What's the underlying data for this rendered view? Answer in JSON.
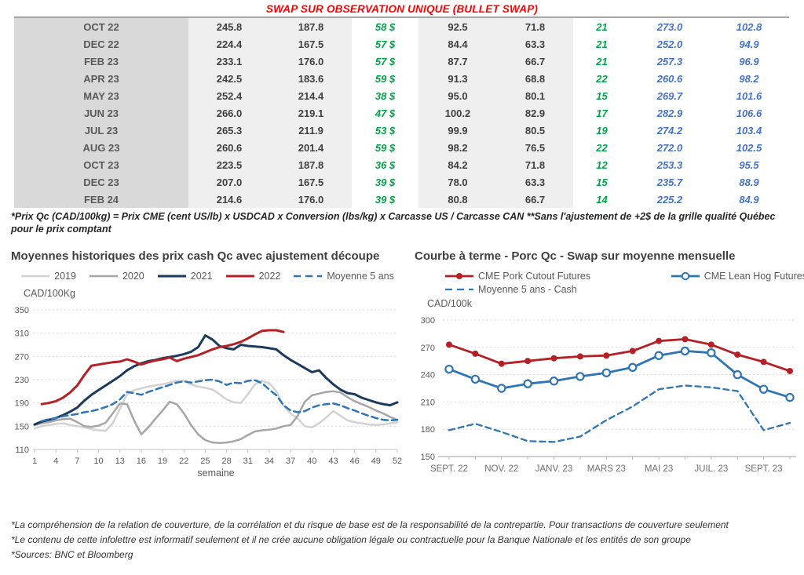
{
  "title": {
    "text": "SWAP SUR OBSERVATION UNIQUE (BULLET SWAP)"
  },
  "colors": {
    "title-red": "#ff0000",
    "green": "#00a348",
    "blue": "#4472c4",
    "grid": "#d9d9d9"
  },
  "table": {
    "rows": [
      [
        "OCT 22",
        "245.8",
        "187.8",
        "58 $",
        "92.5",
        "71.8",
        "21",
        "273.0",
        "102.8"
      ],
      [
        "DEC 22",
        "224.4",
        "167.5",
        "57 $",
        "84.4",
        "63.3",
        "21",
        "252.0",
        "94.9"
      ],
      [
        "FEB 23",
        "233.1",
        "176.0",
        "57 $",
        "87.7",
        "66.7",
        "21",
        "257.3",
        "96.9"
      ],
      [
        "APR 23",
        "242.5",
        "183.6",
        "59 $",
        "91.3",
        "68.8",
        "22",
        "260.6",
        "98.2"
      ],
      [
        "MAY 23",
        "252.4",
        "214.4",
        "38 $",
        "95.0",
        "80.1",
        "15",
        "269.7",
        "101.6"
      ],
      [
        "JUN 23",
        "266.0",
        "219.1",
        "47 $",
        "100.2",
        "82.9",
        "17",
        "282.9",
        "106.6"
      ],
      [
        "JUL 23",
        "265.3",
        "211.9",
        "53 $",
        "99.9",
        "80.5",
        "19",
        "274.2",
        "103.4"
      ],
      [
        "AUG 23",
        "260.6",
        "201.4",
        "59 $",
        "98.2",
        "76.5",
        "22",
        "272.0",
        "102.5"
      ],
      [
        "OCT 23",
        "223.5",
        "187.8",
        "36 $",
        "84.2",
        "71.8",
        "12",
        "253.3",
        "95.5"
      ],
      [
        "DEC 23",
        "207.0",
        "167.5",
        "39 $",
        "78.0",
        "63.3",
        "15",
        "235.7",
        "88.9"
      ],
      [
        "FEB 24",
        "214.6",
        "176.0",
        "39 $",
        "80.8",
        "66.7",
        "14",
        "225.2",
        "84.9"
      ]
    ]
  },
  "table_footnote": "*Prix Qc (CAD/100kg) = Prix CME (cent US/lb) x USDCAD x Conversion (lbs/kg) x Carcasse US / Carcasse CAN **Sans l'ajustement de +2$ de la grille qualité Québec pour le prix comptant",
  "chart_data": [
    {
      "type": "line",
      "title": "Moyennes historiques des prix cash Qc avec ajustement découpe",
      "ylabel": "CAD/100Kg",
      "xlabel": "semaine",
      "ylim": [
        110,
        350
      ],
      "yticks": [
        110,
        150,
        190,
        230,
        270,
        310,
        350
      ],
      "xticks": [
        1,
        4,
        7,
        10,
        13,
        16,
        19,
        22,
        25,
        28,
        31,
        34,
        37,
        40,
        43,
        46,
        49,
        52
      ],
      "grid": "horizontal-dashed",
      "legend_position": "top",
      "series": [
        {
          "name": "2019",
          "color": "#d2d2d2",
          "dash": false,
          "width": 2.5,
          "x_start": 1,
          "values": [
            146,
            150,
            152,
            154,
            155,
            152,
            150,
            148,
            145,
            143,
            142,
            155,
            180,
            205,
            212,
            215,
            218,
            220,
            222,
            225,
            228,
            228,
            222,
            218,
            216,
            213,
            205,
            196,
            191,
            190,
            205,
            222,
            228,
            224,
            210,
            185,
            172,
            163,
            150,
            148,
            155,
            165,
            176,
            168,
            160,
            157,
            155,
            153,
            152,
            153,
            155,
            157
          ]
        },
        {
          "name": "2020",
          "color": "#a6a6a6",
          "dash": false,
          "width": 2.5,
          "x_start": 1,
          "values": [
            152,
            155,
            157,
            160,
            162,
            163,
            157,
            150,
            149,
            151,
            156,
            172,
            189,
            188,
            160,
            136,
            148,
            163,
            177,
            192,
            188,
            172,
            152,
            136,
            126,
            122,
            121,
            122,
            124,
            128,
            135,
            141,
            143,
            144,
            146,
            150,
            152,
            168,
            192,
            203,
            206,
            209,
            210,
            208,
            200,
            193,
            188,
            183,
            177,
            172,
            166,
            161
          ]
        },
        {
          "name": "2021",
          "color": "#1b3a5e",
          "dash": false,
          "width": 3,
          "x_start": 1,
          "values": [
            153,
            158,
            161,
            164,
            169,
            175,
            182,
            194,
            204,
            212,
            220,
            228,
            236,
            246,
            253,
            258,
            262,
            264,
            267,
            269,
            271,
            274,
            278,
            286,
            306,
            299,
            288,
            284,
            282,
            290,
            288,
            287,
            286,
            284,
            282,
            272,
            264,
            257,
            250,
            243,
            246,
            233,
            222,
            213,
            207,
            205,
            199,
            195,
            191,
            188,
            186,
            191
          ]
        },
        {
          "name": "2022",
          "color": "#b42025",
          "dash": false,
          "width": 3,
          "x_start": 2,
          "values": [
            188,
            190,
            193,
            199,
            208,
            220,
            238,
            254,
            256,
            258,
            260,
            261,
            265,
            261,
            256,
            260,
            263,
            265,
            268,
            262,
            266,
            269,
            272,
            277,
            282,
            286,
            288,
            291,
            295,
            301,
            308,
            314,
            315,
            315,
            312
          ]
        },
        {
          "name": "Moyenne 5 ans",
          "color": "#2e75b6",
          "dash": true,
          "width": 2.5,
          "x_start": 2,
          "values": [
            159,
            162,
            164,
            167,
            169,
            171,
            174,
            176,
            179,
            183,
            188,
            196,
            209,
            207,
            204,
            209,
            213,
            217,
            221,
            225,
            227,
            225,
            227,
            229,
            230,
            227,
            221,
            225,
            224,
            228,
            229,
            224,
            213,
            203,
            186,
            177,
            174,
            176,
            182,
            186,
            188,
            189,
            186,
            181,
            177,
            172,
            168,
            164,
            161,
            160,
            161
          ]
        }
      ]
    },
    {
      "type": "line",
      "title": "Courbe à terme - Porc Qc - Swap sur moyenne mensuelle",
      "ylabel": "CAD/100k",
      "ylim": [
        150,
        300
      ],
      "yticks": [
        150,
        180,
        210,
        240,
        270,
        300
      ],
      "n_points": 14,
      "x_tick_labels": [
        "SEPT. 22",
        "NOV. 22",
        "JANV. 23",
        "MARS 23",
        "MAI 23",
        "JUIL. 23",
        "SEPT. 23"
      ],
      "x_tick_every": 2,
      "grid": "horizontal-dashed",
      "legend_position": "top",
      "series": [
        {
          "name": "CME Pork Cutout Futures",
          "color": "#b42025",
          "dash": false,
          "width": 2.8,
          "marker": "filled",
          "values": [
            273,
            263,
            252,
            255,
            258,
            260,
            261,
            266,
            277,
            279,
            273,
            262,
            254,
            244
          ]
        },
        {
          "name": "CME Lean Hog Futures",
          "color": "#2e75b6",
          "dash": false,
          "width": 2.8,
          "marker": "open",
          "values": [
            246,
            235,
            225,
            230,
            233,
            238,
            242,
            248,
            261,
            266,
            264,
            240,
            224,
            215
          ]
        },
        {
          "name": "Moyenne 5 ans - Cash",
          "color": "#2e75b6",
          "dash": true,
          "width": 2.3,
          "marker": "none",
          "values": [
            179,
            186,
            177,
            167,
            166,
            172,
            190,
            205,
            224,
            228,
            226,
            222,
            179,
            187
          ]
        }
      ]
    }
  ],
  "disclaimers": [
    "*La compréhension de la relation de couverture, de la corrélation et du risque de base est de la responsabilité de la contrepartie. Pour transactions de couverture seulement",
    "*Le contenu de cette infolettre est informatif seulement et il ne crée aucune obligation légale ou contractuelle pour la Banque Nationale et les entités de son groupe",
    "*Sources: BNC et Bloomberg"
  ]
}
